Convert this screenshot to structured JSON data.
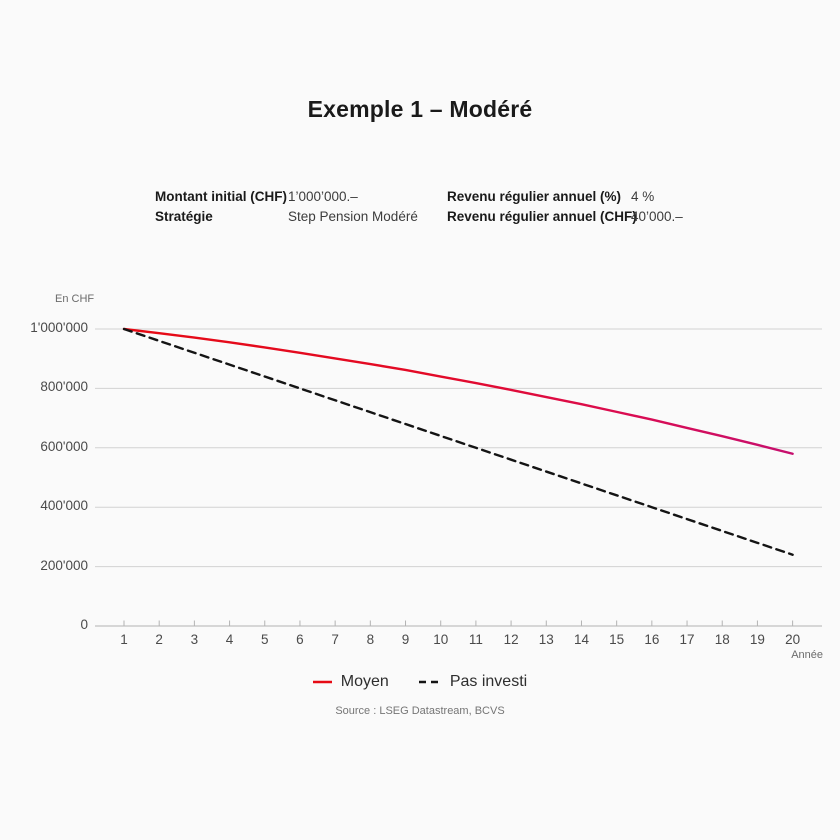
{
  "page": {
    "background": "#fafafa"
  },
  "title": "Exemple 1 – Modéré",
  "info_table": {
    "rows": [
      {
        "label1": "Montant initial (CHF)",
        "value1": "1’000’000.–",
        "label2": "Revenu régulier annuel (%)",
        "value2": "4 %"
      },
      {
        "label1": "Stratégie",
        "value1": "Step Pension Modéré",
        "label2": "Revenu régulier annuel (CHF)",
        "value2": "40’000.–"
      }
    ]
  },
  "chart_data": {
    "type": "line",
    "title": "Exemple 1 – Modéré",
    "unit_label": "En CHF",
    "xlabel": "Année",
    "ylabel": "En CHF",
    "x": [
      1,
      2,
      3,
      4,
      5,
      6,
      7,
      8,
      9,
      10,
      11,
      12,
      13,
      14,
      15,
      16,
      17,
      18,
      19,
      20
    ],
    "series": [
      {
        "name": "Moyen",
        "style": "solid",
        "color_start": "#e60a14",
        "color_end": "#c60f6e",
        "values": [
          1000000,
          986000,
          971000,
          955000,
          938000,
          920000,
          901000,
          882000,
          862000,
          840000,
          818000,
          795000,
          771000,
          747000,
          721000,
          695000,
          667000,
          639000,
          610000,
          580000
        ]
      },
      {
        "name": "Pas investi",
        "style": "dashed",
        "color": "#141414",
        "values": [
          1000000,
          960000,
          920000,
          880000,
          840000,
          800000,
          760000,
          720000,
          680000,
          640000,
          600000,
          560000,
          520000,
          480000,
          440000,
          400000,
          360000,
          320000,
          280000,
          240000
        ]
      }
    ],
    "ylim": [
      0,
      1000000
    ],
    "yticks": [
      0,
      200000,
      400000,
      600000,
      800000,
      1000000
    ],
    "ytick_labels": [
      "0",
      "200'000",
      "400'000",
      "600'000",
      "800'000",
      "1'000'000"
    ],
    "grid": true,
    "legend_position": "bottom"
  },
  "colors": {
    "grid": "#d2d2d2",
    "axis": "#b3b3b3",
    "tick_text": "#4a4a4a"
  },
  "source": "Source : LSEG Datastream, BCVS"
}
